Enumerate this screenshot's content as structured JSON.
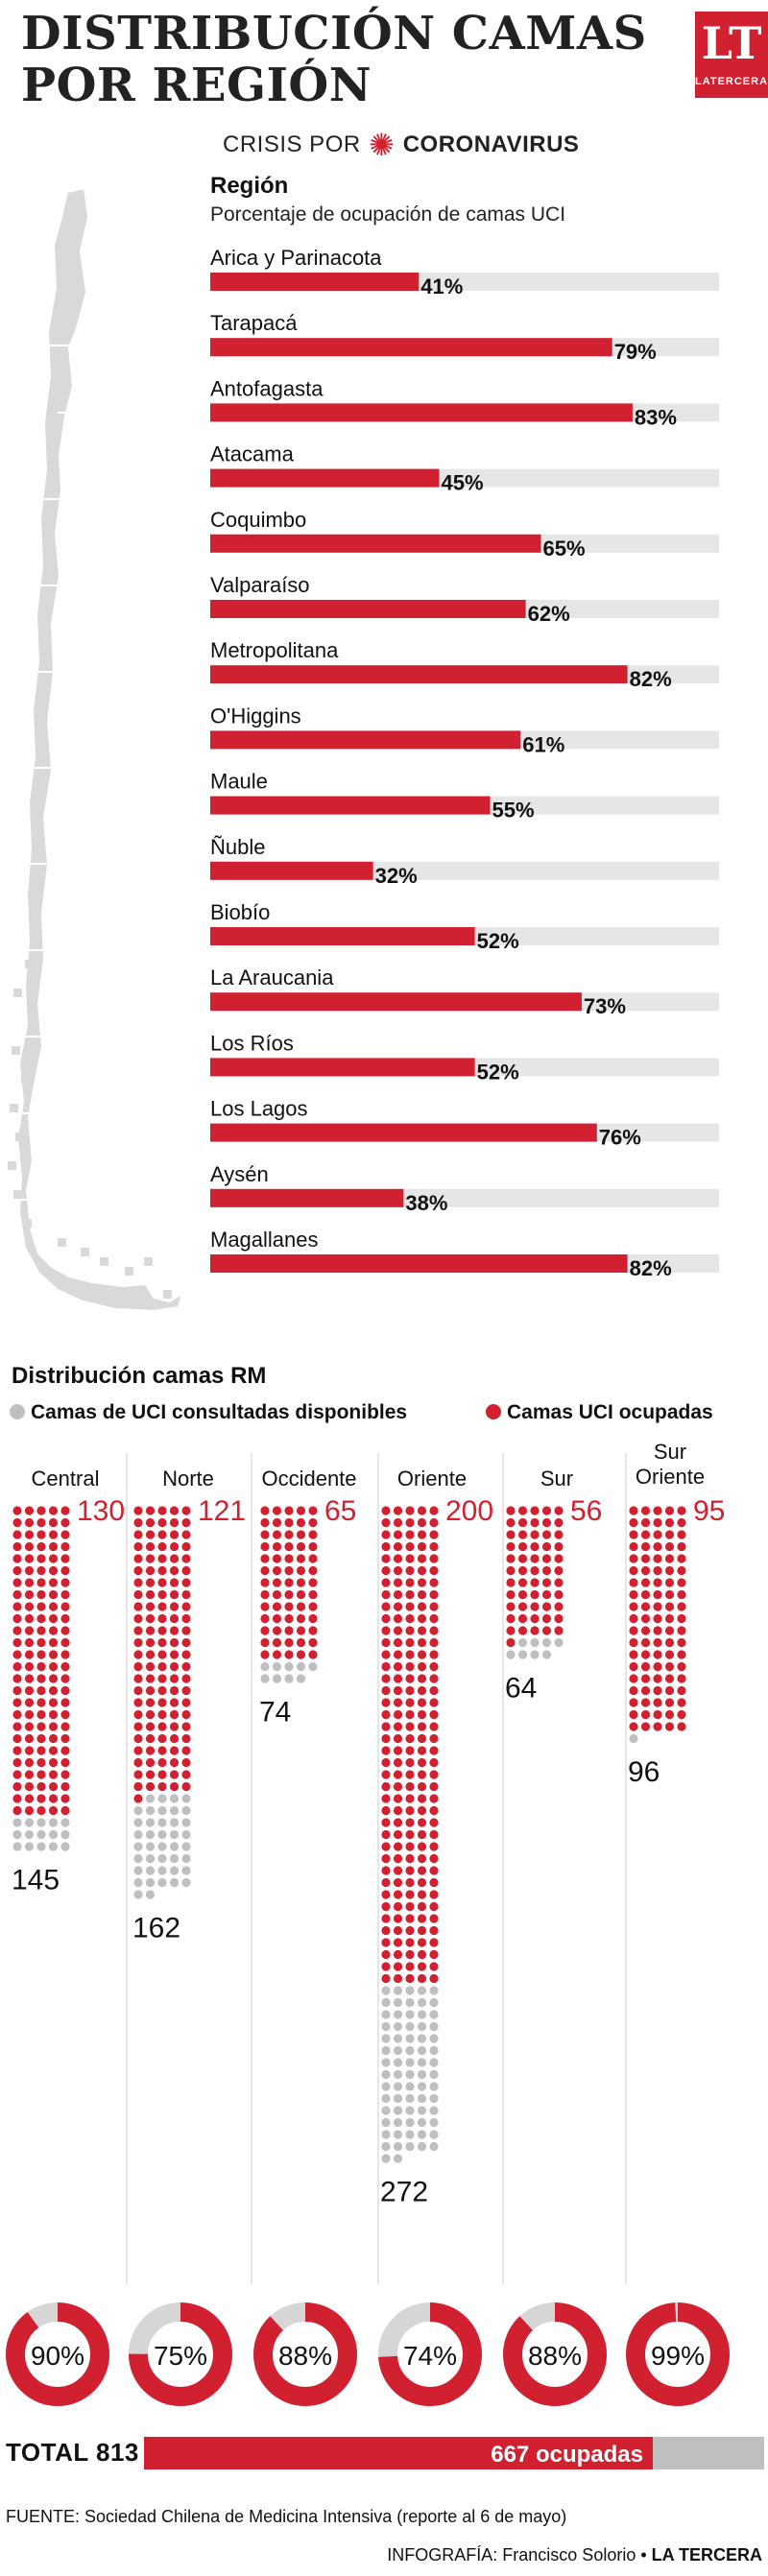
{
  "header": {
    "title_line1": "DISTRIBUCIÓN CAMAS",
    "title_line2": "POR REGIÓN",
    "logo_text": "LT",
    "logo_sub": "LATERCERA",
    "crisis_prefix": "CRISIS POR",
    "crisis_bold": "CORONAVIRUS"
  },
  "regions_section": {
    "heading": "Región",
    "subheading": "Porcentaje de ocupación de camas UCI"
  },
  "rm_section": {
    "heading": "Distribución camas RM",
    "legend_available": "Camas de UCI consultadas disponibles",
    "legend_occupied": "Camas UCI ocupadas"
  },
  "total": {
    "label": "TOTAL 813",
    "occupied_text": "667 ocupadas"
  },
  "footer": {
    "source": "FUENTE: Sociedad Chilena de Medicina Intensiva (reporte al 6 de mayo)",
    "credit_prefix": "INFOGRAFÍA: Francisco Solorio • ",
    "credit_brand": "LA TERCERA"
  },
  "colors": {
    "red": "#d1202f",
    "gray": "#bfbfbf",
    "track": "#e6e6e6",
    "map": "#d9d9d9"
  },
  "chart_data": [
    {
      "type": "bar",
      "orientation": "horizontal",
      "title": "",
      "categories": [
        "Arica y Parinacota",
        "Tarapacá",
        "Antofagasta",
        "Atacama",
        "Coquimbo",
        "Valparaíso",
        "Metropolitana",
        "O'Higgins",
        "Maule",
        "Ñuble",
        "Biobío",
        "La Araucania",
        "Los Ríos",
        "Los Lagos",
        "Aysén",
        "Magallanes"
      ],
      "values": [
        41,
        79,
        83,
        45,
        65,
        62,
        82,
        61,
        55,
        32,
        52,
        73,
        52,
        76,
        38,
        82
      ],
      "labels": [
        "41%",
        "79%",
        "83%",
        "45%",
        "65%",
        "62%",
        "82%",
        "61%",
        "55%",
        "32%",
        "52%",
        "73%",
        "52%",
        "76%",
        "38%",
        "82%"
      ],
      "xlim": [
        0,
        100
      ],
      "grid": false
    },
    {
      "type": "dot-column",
      "categories": [
        "Central",
        "Norte",
        "Occidente",
        "Oriente",
        "Sur",
        "Sur Oriente"
      ],
      "series": [
        {
          "name": "Camas UCI ocupadas",
          "values": [
            130,
            121,
            65,
            200,
            56,
            95
          ]
        },
        {
          "name": "Camas de UCI consultadas disponibles",
          "values": [
            145,
            162,
            74,
            272,
            64,
            96
          ]
        }
      ]
    },
    {
      "type": "pie",
      "categories": [
        "Central",
        "Norte",
        "Occidente",
        "Oriente",
        "Sur",
        "Sur Oriente"
      ],
      "values": [
        90,
        75,
        88,
        74,
        88,
        99
      ],
      "labels": [
        "90%",
        "75%",
        "88%",
        "74%",
        "88%",
        "99%"
      ]
    },
    {
      "type": "bar",
      "label": "TOTAL 813",
      "values": [
        667
      ],
      "total": 813,
      "value_label": "667 ocupadas"
    }
  ]
}
